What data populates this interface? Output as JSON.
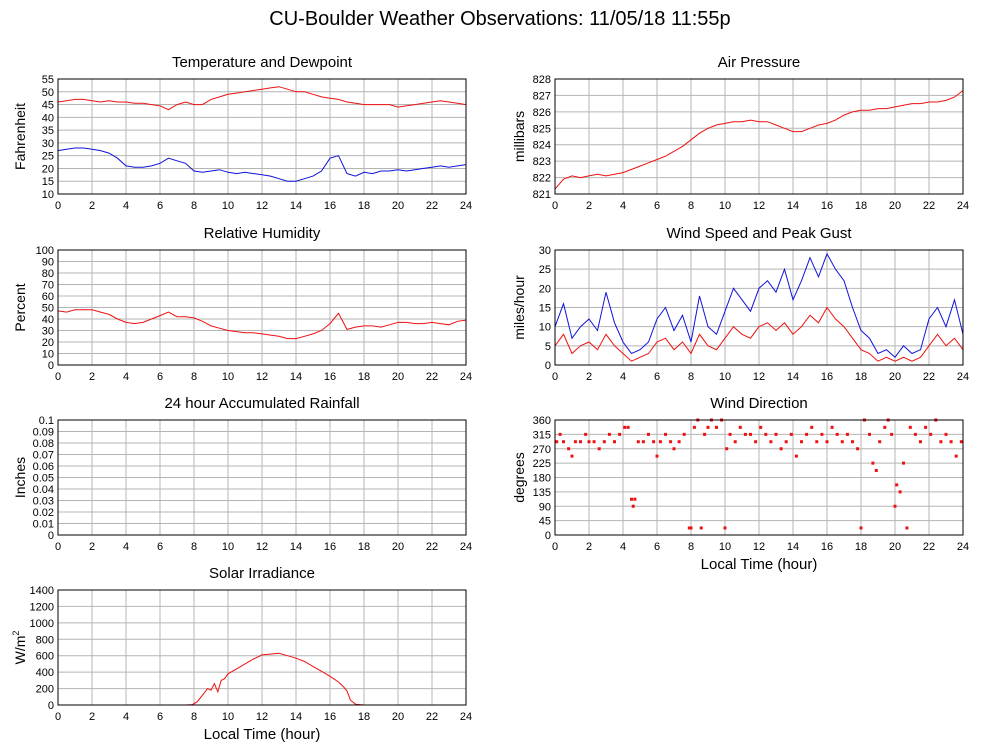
{
  "title": "CU-Boulder Weather Observations: 11/05/18 11:55p",
  "colors": {
    "red": "#ee1111",
    "blue": "#1111dd",
    "grid": "#b4b4b4"
  },
  "chart_data": [
    {
      "id": "temp",
      "type": "line",
      "title": "Temperature and Dewpoint",
      "xlabel": "",
      "ylabel": "Fahrenheit",
      "xlim": [
        0,
        24
      ],
      "ylim": [
        10,
        55
      ],
      "x_ticks": [
        0,
        2,
        4,
        6,
        8,
        10,
        12,
        14,
        16,
        18,
        20,
        22,
        24
      ],
      "y_ticks": [
        10,
        15,
        20,
        25,
        30,
        35,
        40,
        45,
        50,
        55
      ],
      "series": [
        {
          "color": "#ee1111",
          "x": [
            0,
            0.5,
            1,
            1.5,
            2,
            2.5,
            3,
            3.5,
            4,
            4.5,
            5,
            5.5,
            6,
            6.5,
            7,
            7.5,
            8,
            8.5,
            9,
            9.5,
            10,
            10.5,
            11,
            11.5,
            12,
            12.5,
            13,
            13.5,
            14,
            14.5,
            15,
            15.5,
            16,
            16.5,
            17,
            17.5,
            18,
            18.5,
            19,
            19.5,
            20,
            20.5,
            21,
            21.5,
            22,
            22.5,
            23,
            23.5,
            24
          ],
          "y": [
            46,
            46.5,
            47,
            47,
            46.5,
            46,
            46.5,
            46,
            46,
            45.5,
            45.5,
            45,
            44.5,
            43,
            45,
            46,
            45,
            45,
            47,
            48,
            49,
            49.5,
            50,
            50.5,
            51,
            51.5,
            52,
            51,
            50,
            50,
            49,
            48,
            47.5,
            47,
            46,
            45.5,
            45,
            45,
            45,
            45,
            44,
            44.5,
            45,
            45.5,
            46,
            46.5,
            46,
            45.5,
            45
          ]
        },
        {
          "color": "#1111dd",
          "x": [
            0,
            0.5,
            1,
            1.5,
            2,
            2.5,
            3,
            3.5,
            4,
            4.5,
            5,
            5.5,
            6,
            6.5,
            7,
            7.5,
            8,
            8.5,
            9,
            9.5,
            10,
            10.5,
            11,
            11.5,
            12,
            12.5,
            13,
            13.5,
            14,
            14.5,
            15,
            15.5,
            16,
            16.5,
            17,
            17.5,
            18,
            18.5,
            19,
            19.5,
            20,
            20.5,
            21,
            21.5,
            22,
            22.5,
            23,
            23.5,
            24
          ],
          "y": [
            27,
            27.5,
            28,
            28,
            27.5,
            27,
            26,
            24,
            21,
            20.5,
            20.5,
            21,
            22,
            24,
            23,
            22,
            19,
            18.5,
            19,
            19.5,
            18.5,
            18,
            18.5,
            18,
            17.5,
            17,
            16,
            15,
            15,
            16,
            17,
            19,
            24,
            25,
            18,
            17,
            18.5,
            18,
            19,
            19,
            19.5,
            19,
            19.5,
            20,
            20.5,
            21,
            20.5,
            21,
            21.5
          ]
        }
      ]
    },
    {
      "id": "pressure",
      "type": "line",
      "title": "Air Pressure",
      "xlabel": "",
      "ylabel": "millibars",
      "xlim": [
        0,
        24
      ],
      "ylim": [
        821,
        828
      ],
      "x_ticks": [
        0,
        2,
        4,
        6,
        8,
        10,
        12,
        14,
        16,
        18,
        20,
        22,
        24
      ],
      "y_ticks": [
        821,
        822,
        823,
        824,
        825,
        826,
        827,
        828
      ],
      "series": [
        {
          "color": "#ee1111",
          "x": [
            0,
            0.5,
            1,
            1.5,
            2,
            2.5,
            3,
            3.5,
            4,
            4.5,
            5,
            5.5,
            6,
            6.5,
            7,
            7.5,
            8,
            8.5,
            9,
            9.5,
            10,
            10.5,
            11,
            11.5,
            12,
            12.5,
            13,
            13.5,
            14,
            14.5,
            15,
            15.5,
            16,
            16.5,
            17,
            17.5,
            18,
            18.5,
            19,
            19.5,
            20,
            20.5,
            21,
            21.5,
            22,
            22.5,
            23,
            23.5,
            24
          ],
          "y": [
            821.3,
            821.9,
            822.1,
            822.0,
            822.1,
            822.2,
            822.1,
            822.2,
            822.3,
            822.5,
            822.7,
            822.9,
            823.1,
            823.3,
            823.6,
            823.9,
            824.3,
            824.7,
            825.0,
            825.2,
            825.3,
            825.4,
            825.4,
            825.5,
            825.4,
            825.4,
            825.2,
            825.0,
            824.8,
            824.8,
            825.0,
            825.2,
            825.3,
            825.5,
            825.8,
            826.0,
            826.1,
            826.1,
            826.2,
            826.2,
            826.3,
            826.4,
            826.5,
            826.5,
            826.6,
            826.6,
            826.7,
            826.9,
            827.3
          ]
        }
      ]
    },
    {
      "id": "humidity",
      "type": "line",
      "title": "Relative Humidity",
      "xlabel": "",
      "ylabel": "Percent",
      "xlim": [
        0,
        24
      ],
      "ylim": [
        0,
        100
      ],
      "x_ticks": [
        0,
        2,
        4,
        6,
        8,
        10,
        12,
        14,
        16,
        18,
        20,
        22,
        24
      ],
      "y_ticks": [
        0,
        10,
        20,
        30,
        40,
        50,
        60,
        70,
        80,
        90,
        100
      ],
      "series": [
        {
          "color": "#ee1111",
          "x": [
            0,
            0.5,
            1,
            1.5,
            2,
            2.5,
            3,
            3.5,
            4,
            4.5,
            5,
            5.5,
            6,
            6.5,
            7,
            7.5,
            8,
            8.5,
            9,
            9.5,
            10,
            10.5,
            11,
            11.5,
            12,
            12.5,
            13,
            13.5,
            14,
            14.5,
            15,
            15.5,
            16,
            16.5,
            17,
            17.5,
            18,
            18.5,
            19,
            19.5,
            20,
            20.5,
            21,
            21.5,
            22,
            22.5,
            23,
            23.5,
            24
          ],
          "y": [
            47,
            46,
            48,
            48,
            48,
            46,
            44,
            40,
            37,
            36,
            37,
            40,
            43,
            46,
            42,
            42,
            41,
            38,
            34,
            32,
            30,
            29,
            28,
            28,
            27,
            26,
            25,
            23,
            23,
            25,
            27,
            30,
            36,
            45,
            31,
            33,
            34,
            34,
            33,
            35,
            37,
            37,
            36,
            36,
            37,
            36,
            35,
            38,
            39
          ]
        }
      ]
    },
    {
      "id": "wind",
      "type": "line",
      "title": "Wind Speed and Peak Gust",
      "xlabel": "",
      "ylabel": "miles/hour",
      "xlim": [
        0,
        24
      ],
      "ylim": [
        0,
        30
      ],
      "x_ticks": [
        0,
        2,
        4,
        6,
        8,
        10,
        12,
        14,
        16,
        18,
        20,
        22,
        24
      ],
      "y_ticks": [
        0,
        5,
        10,
        15,
        20,
        25,
        30
      ],
      "series": [
        {
          "color": "#1111dd",
          "x": [
            0,
            0.5,
            1,
            1.5,
            2,
            2.5,
            3,
            3.5,
            4,
            4.5,
            5,
            5.5,
            6,
            6.5,
            7,
            7.5,
            8,
            8.5,
            9,
            9.5,
            10,
            10.5,
            11,
            11.5,
            12,
            12.5,
            13,
            13.5,
            14,
            14.5,
            15,
            15.5,
            16,
            16.5,
            17,
            17.5,
            18,
            18.5,
            19,
            19.5,
            20,
            20.5,
            21,
            21.5,
            22,
            22.5,
            23,
            23.5,
            24
          ],
          "y": [
            10,
            16,
            7,
            10,
            12,
            9,
            19,
            11,
            6,
            3,
            4,
            6,
            12,
            15,
            9,
            13,
            6,
            18,
            10,
            8,
            14,
            20,
            17,
            14,
            20,
            22,
            19,
            25,
            17,
            22,
            28,
            23,
            29,
            25,
            22,
            15,
            9,
            7,
            3,
            4,
            2,
            5,
            3,
            4,
            12,
            15,
            10,
            17,
            8
          ]
        },
        {
          "color": "#ee1111",
          "x": [
            0,
            0.5,
            1,
            1.5,
            2,
            2.5,
            3,
            3.5,
            4,
            4.5,
            5,
            5.5,
            6,
            6.5,
            7,
            7.5,
            8,
            8.5,
            9,
            9.5,
            10,
            10.5,
            11,
            11.5,
            12,
            12.5,
            13,
            13.5,
            14,
            14.5,
            15,
            15.5,
            16,
            16.5,
            17,
            17.5,
            18,
            18.5,
            19,
            19.5,
            20,
            20.5,
            21,
            21.5,
            22,
            22.5,
            23,
            23.5,
            24
          ],
          "y": [
            5,
            8,
            3,
            5,
            6,
            4,
            8,
            5,
            3,
            1,
            2,
            3,
            6,
            7,
            4,
            6,
            3,
            8,
            5,
            4,
            7,
            10,
            8,
            7,
            10,
            11,
            9,
            11,
            8,
            10,
            13,
            11,
            15,
            12,
            10,
            7,
            4,
            3,
            1,
            2,
            1,
            2,
            1,
            2,
            5,
            8,
            5,
            7,
            4
          ]
        }
      ]
    },
    {
      "id": "rain",
      "type": "line",
      "title": "24 hour Accumulated Rainfall",
      "xlabel": "",
      "ylabel": "Inches",
      "xlim": [
        0,
        24
      ],
      "ylim": [
        0,
        0.1
      ],
      "x_ticks": [
        0,
        2,
        4,
        6,
        8,
        10,
        12,
        14,
        16,
        18,
        20,
        22,
        24
      ],
      "y_ticks": [
        0.0,
        0.01,
        0.02,
        0.03,
        0.04,
        0.05,
        0.06,
        0.07,
        0.08,
        0.09,
        0.1
      ],
      "series": [
        {
          "color": "#ee1111",
          "x": [
            0,
            24
          ],
          "y": [
            0,
            0
          ]
        }
      ]
    },
    {
      "id": "winddir",
      "type": "scatter",
      "title": "Wind Direction",
      "xlabel": "Local Time (hour)",
      "ylabel": "degrees",
      "xlim": [
        0,
        24
      ],
      "ylim": [
        0,
        360
      ],
      "x_ticks": [
        0,
        2,
        4,
        6,
        8,
        10,
        12,
        14,
        16,
        18,
        20,
        22,
        24
      ],
      "y_ticks": [
        0,
        45,
        90,
        135,
        180,
        225,
        270,
        315,
        360
      ],
      "series": [
        {
          "color": "#ee1111",
          "x": [
            0.1,
            0.3,
            0.5,
            0.8,
            1.0,
            1.2,
            1.5,
            1.8,
            2.0,
            2.3,
            2.6,
            2.9,
            3.2,
            3.5,
            3.8,
            4.1,
            4.3,
            4.5,
            4.6,
            4.7,
            4.9,
            5.2,
            5.5,
            5.8,
            6.0,
            6.2,
            6.5,
            6.8,
            7.0,
            7.3,
            7.6,
            7.9,
            8.0,
            8.2,
            8.4,
            8.6,
            8.8,
            9.0,
            9.2,
            9.5,
            9.8,
            10.0,
            10.1,
            10.3,
            10.6,
            10.9,
            11.2,
            11.5,
            11.8,
            12.1,
            12.4,
            12.7,
            13.0,
            13.3,
            13.6,
            13.9,
            14.2,
            14.5,
            14.8,
            15.1,
            15.4,
            15.7,
            16.0,
            16.3,
            16.6,
            16.9,
            17.2,
            17.5,
            17.8,
            18.0,
            18.2,
            18.5,
            18.7,
            18.9,
            19.1,
            19.4,
            19.6,
            19.8,
            20.0,
            20.1,
            20.3,
            20.5,
            20.7,
            20.9,
            21.2,
            21.5,
            21.8,
            22.1,
            22.4,
            22.7,
            23.0,
            23.3,
            23.6,
            23.9
          ],
          "y": [
            292,
            315,
            292,
            270,
            247,
            292,
            292,
            315,
            292,
            292,
            270,
            292,
            315,
            292,
            315,
            337,
            337,
            112,
            90,
            112,
            292,
            292,
            315,
            292,
            247,
            292,
            315,
            292,
            270,
            292,
            315,
            22,
            22,
            337,
            360,
            22,
            315,
            337,
            360,
            337,
            360,
            22,
            270,
            315,
            292,
            337,
            315,
            315,
            292,
            337,
            315,
            292,
            315,
            270,
            292,
            315,
            247,
            292,
            315,
            337,
            292,
            315,
            292,
            337,
            315,
            292,
            315,
            292,
            270,
            22,
            360,
            315,
            225,
            202,
            292,
            337,
            360,
            315,
            90,
            157,
            135,
            225,
            22,
            337,
            315,
            292,
            337,
            315,
            360,
            292,
            315,
            292,
            247,
            292
          ]
        }
      ]
    },
    {
      "id": "solar",
      "type": "line",
      "title": "Solar Irradiance",
      "xlabel": "Local Time (hour)",
      "ylabel": "W/m",
      "ylabel_sup": "2",
      "xlim": [
        0,
        24
      ],
      "ylim": [
        0,
        1400
      ],
      "x_ticks": [
        0,
        2,
        4,
        6,
        8,
        10,
        12,
        14,
        16,
        18,
        20,
        22,
        24
      ],
      "y_ticks": [
        0,
        200,
        400,
        600,
        800,
        1000,
        1200,
        1400
      ],
      "series": [
        {
          "color": "#ee1111",
          "x": [
            0,
            7.5,
            7.9,
            8.2,
            8.5,
            8.8,
            9.0,
            9.2,
            9.4,
            9.6,
            9.8,
            10.0,
            10.5,
            11.0,
            11.5,
            12.0,
            12.5,
            13.0,
            13.5,
            14.0,
            14.5,
            15.0,
            15.5,
            16.0,
            16.5,
            16.8,
            17.0,
            17.2,
            17.5,
            18.0,
            24
          ],
          "y": [
            0,
            0,
            5,
            40,
            120,
            200,
            180,
            260,
            160,
            300,
            320,
            380,
            440,
            500,
            560,
            610,
            620,
            630,
            600,
            570,
            530,
            470,
            410,
            350,
            280,
            220,
            170,
            60,
            10,
            0,
            0
          ]
        }
      ]
    }
  ]
}
